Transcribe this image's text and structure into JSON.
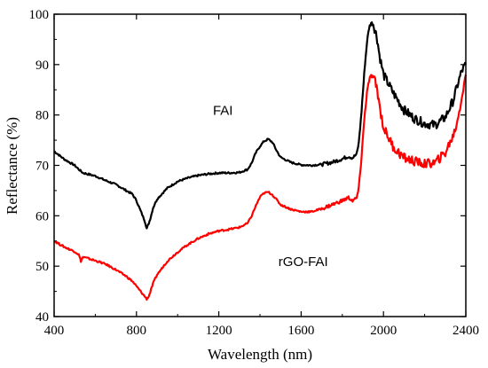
{
  "chart_data": {
    "type": "line",
    "xlabel": "Wavelength (nm)",
    "ylabel": "Reflectance (%)",
    "xlim": [
      400,
      2400
    ],
    "ylim": [
      40,
      100
    ],
    "xticks": [
      400,
      800,
      1200,
      1600,
      2000,
      2400
    ],
    "yticks": [
      40,
      50,
      60,
      70,
      80,
      90,
      100
    ],
    "grid": false,
    "legend": "none",
    "series": [
      {
        "name": "FAI",
        "color": "#000000",
        "x": [
          400,
          450,
          500,
          520,
          540,
          560,
          600,
          650,
          700,
          730,
          750,
          780,
          800,
          820,
          840,
          850,
          860,
          870,
          880,
          900,
          950,
          1000,
          1050,
          1100,
          1150,
          1200,
          1250,
          1300,
          1340,
          1360,
          1380,
          1400,
          1420,
          1440,
          1460,
          1480,
          1500,
          1550,
          1600,
          1650,
          1700,
          1750,
          1800,
          1830,
          1850,
          1870,
          1880,
          1890,
          1900,
          1910,
          1920,
          1930,
          1940,
          1950,
          1960,
          1970,
          1980,
          2000,
          2050,
          2100,
          2150,
          2200,
          2250,
          2300,
          2340,
          2360,
          2380,
          2400
        ],
        "y": [
          72.8,
          71.2,
          70.0,
          69.2,
          68.5,
          68.3,
          67.9,
          67.0,
          66.2,
          65.5,
          65.0,
          64.3,
          63.0,
          61.0,
          59.0,
          57.5,
          58.5,
          59.8,
          61.5,
          63.3,
          65.5,
          66.8,
          67.5,
          68.0,
          68.3,
          68.5,
          68.5,
          68.6,
          69.2,
          70.5,
          72.5,
          73.8,
          74.8,
          75.2,
          74.6,
          73.0,
          71.6,
          70.6,
          70.1,
          70.0,
          70.2,
          70.6,
          71.3,
          71.8,
          71.5,
          72.2,
          74.5,
          79.0,
          84.5,
          90.0,
          94.5,
          97.3,
          98.3,
          98.0,
          96.8,
          95.0,
          92.0,
          88.0,
          84.2,
          81.0,
          79.3,
          78.3,
          78.0,
          79.5,
          83.0,
          86.0,
          88.7,
          90.0
        ]
      },
      {
        "name": "rGO-FAI",
        "color": "#ff0000",
        "x": [
          400,
          450,
          500,
          520,
          530,
          540,
          560,
          600,
          650,
          700,
          750,
          780,
          800,
          820,
          840,
          850,
          860,
          870,
          880,
          900,
          950,
          1000,
          1050,
          1100,
          1150,
          1200,
          1250,
          1300,
          1340,
          1360,
          1380,
          1400,
          1420,
          1440,
          1460,
          1480,
          1500,
          1550,
          1600,
          1650,
          1700,
          1750,
          1800,
          1830,
          1850,
          1870,
          1880,
          1890,
          1900,
          1910,
          1920,
          1930,
          1940,
          1950,
          1960,
          1970,
          1980,
          2000,
          2050,
          2100,
          2150,
          2200,
          2250,
          2300,
          2340,
          2360,
          2380,
          2400
        ],
        "y": [
          55.0,
          53.8,
          52.9,
          52.3,
          51.0,
          51.8,
          51.6,
          51.1,
          50.4,
          49.3,
          48.0,
          47.0,
          46.0,
          45.0,
          44.0,
          43.5,
          44.0,
          45.2,
          46.5,
          48.3,
          51.0,
          52.8,
          54.3,
          55.5,
          56.4,
          57.0,
          57.3,
          57.7,
          58.5,
          60.0,
          62.0,
          63.7,
          64.5,
          64.7,
          64.2,
          63.2,
          62.2,
          61.3,
          60.8,
          60.8,
          61.4,
          62.2,
          63.0,
          63.6,
          63.0,
          63.5,
          65.5,
          70.0,
          75.5,
          80.5,
          84.5,
          86.8,
          87.8,
          87.5,
          86.5,
          85.0,
          82.0,
          77.5,
          73.5,
          71.5,
          70.8,
          70.3,
          70.5,
          72.5,
          76.0,
          79.0,
          83.5,
          88.0
        ]
      }
    ],
    "annotations": [
      {
        "text": "FAI",
        "x": 1220,
        "y": 80
      },
      {
        "text": "rGO-FAI",
        "x": 1610,
        "y": 50
      }
    ]
  }
}
